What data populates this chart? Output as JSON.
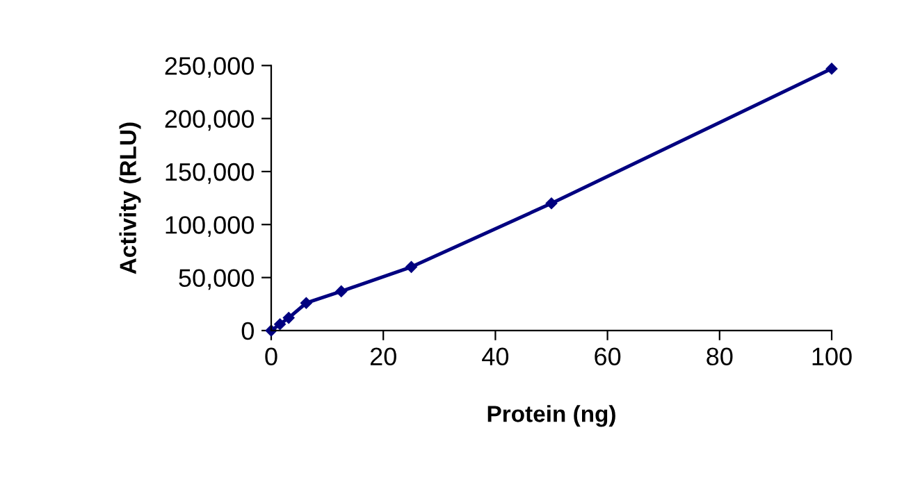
{
  "chart_data": {
    "type": "line",
    "xlabel": "Protein (ng)",
    "ylabel": "Activity (RLU)",
    "x": [
      0,
      1.5625,
      3.125,
      6.25,
      12.5,
      25,
      50,
      100
    ],
    "series": [
      {
        "color": "#000080",
        "values": [
          0,
          6000,
          12000,
          26000,
          37000,
          60000,
          120000,
          247000
        ]
      }
    ],
    "xlim": [
      0,
      100
    ],
    "xticks": [
      0,
      20,
      40,
      60,
      80,
      100
    ],
    "ylim": [
      0,
      250000
    ],
    "yticks": [
      {
        "value": 0,
        "label": "0"
      },
      {
        "value": 50000,
        "label": "50,000"
      },
      {
        "value": 100000,
        "label": "100,000"
      },
      {
        "value": 150000,
        "label": "150,000"
      },
      {
        "value": 200000,
        "label": "200,000"
      },
      {
        "value": 250000,
        "label": "250,000"
      }
    ],
    "marker": "diamond",
    "line_style": "solid",
    "grid": false,
    "legend": false
  }
}
